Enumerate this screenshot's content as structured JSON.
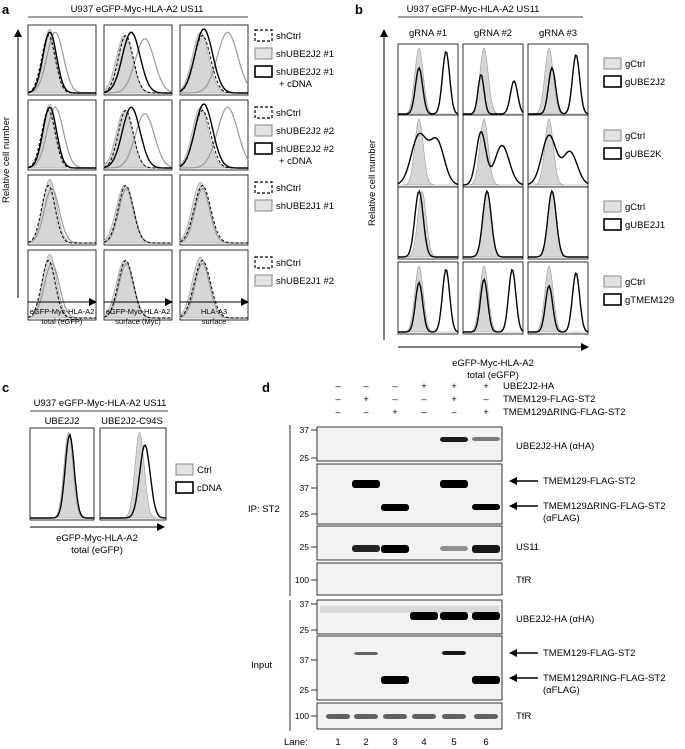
{
  "panel_labels": {
    "a": "a",
    "b": "b",
    "c": "c",
    "d": "d"
  },
  "panel_a": {
    "title": "U937 eGFP-Myc-HLA-A2 US11",
    "y_label": "Relative cell number",
    "x_labels": [
      "eGFP-Myc-HLA-A2 total (eGFP)",
      "eGFP-Myc-HLA-A2 surface (Myc)",
      "HLA-A3 surface"
    ],
    "legends": [
      [
        "shCtrl",
        "shUBE2J2 #1",
        "shUBE2J2 #1",
        "+ cDNA"
      ],
      [
        "shCtrl",
        "shUBE2J2 #2",
        "shUBE2J2 #2",
        "+ cDNA"
      ],
      [
        "shCtrl",
        "shUBE2J1 #1"
      ],
      [
        "shCtrl",
        "shUBE2J1 #2"
      ]
    ]
  },
  "panel_b": {
    "title": "U937 eGFP-Myc-HLA-A2 US11",
    "columns": [
      "gRNA #1",
      "gRNA #2",
      "gRNA #3"
    ],
    "y_label": "Relative cell number",
    "x_label_1": "eGFP-Myc-HLA-A2",
    "x_label_2": "total (eGFP)",
    "legends": [
      [
        "gCtrl",
        "gUBE2J2"
      ],
      [
        "gCtrl",
        "gUBE2K"
      ],
      [
        "gCtrl",
        "gUBE2J1"
      ],
      [
        "gCtrl",
        "gTMEM129"
      ]
    ]
  },
  "panel_c": {
    "title": "U937 eGFP-Myc-HLA-A2 US11",
    "columns": [
      "UBE2J2",
      "UBE2J2-C94S"
    ],
    "legend": [
      "Ctrl",
      "cDNA"
    ],
    "x_label_1": "eGFP-Myc-HLA-A2",
    "x_label_2": "total (eGFP)"
  },
  "panel_d": {
    "conditions": [
      {
        "label": "UBE2J2-HA",
        "signs": [
          "–",
          "–",
          "–",
          "+",
          "+",
          "+"
        ]
      },
      {
        "label": "TMEM129-FLAG-ST2",
        "signs": [
          "–",
          "+",
          "–",
          "–",
          "+",
          "–"
        ]
      },
      {
        "label": "TMEM129ΔRING-FLAG-ST2",
        "signs": [
          "–",
          "–",
          "+",
          "–",
          "–",
          "+"
        ]
      }
    ],
    "ip_label": "IP: ST2",
    "input_label": "Input",
    "blots": [
      {
        "marker": [
          "37",
          "25"
        ],
        "labels": [
          "UBE2J2-HA (αHA)"
        ]
      },
      {
        "marker": [
          "37",
          "25"
        ],
        "labels": [
          "TMEM129-FLAG-ST2",
          "TMEM129ΔRING-FLAG-ST2",
          "(αFLAG)"
        ]
      },
      {
        "marker": [
          "25"
        ],
        "labels": [
          "US11"
        ]
      },
      {
        "marker": [
          "100"
        ],
        "labels": [
          "TfR"
        ]
      },
      {
        "marker": [
          "37",
          "25"
        ],
        "labels": [
          "UBE2J2-HA (αHA)"
        ]
      },
      {
        "marker": [
          "37",
          "25"
        ],
        "labels": [
          "TMEM129-FLAG-ST2",
          "TMEM129ΔRING-FLAG-ST2",
          "(αFLAG)"
        ]
      },
      {
        "marker": [
          "100"
        ],
        "labels": [
          "TfR"
        ]
      }
    ],
    "lane_label": "Lane:",
    "lanes": [
      "1",
      "2",
      "3",
      "4",
      "5",
      "6"
    ]
  }
}
